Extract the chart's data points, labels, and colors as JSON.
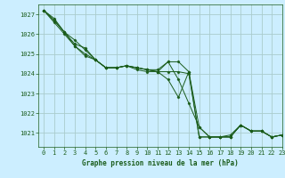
{
  "title": "Graphe pression niveau de la mer (hPa)",
  "background_color": "#cceeff",
  "grid_color": "#aacccc",
  "line_color": "#1a5c1a",
  "marker_color": "#1a5c1a",
  "xlim": [
    -0.5,
    23
  ],
  "ylim": [
    1020.3,
    1027.5
  ],
  "yticks": [
    1021,
    1022,
    1023,
    1024,
    1025,
    1026,
    1027
  ],
  "xticks": [
    0,
    1,
    2,
    3,
    4,
    5,
    6,
    7,
    8,
    9,
    10,
    11,
    12,
    13,
    14,
    15,
    16,
    17,
    18,
    19,
    20,
    21,
    22,
    23
  ],
  "series": [
    [
      1027.2,
      1026.8,
      1026.1,
      1025.7,
      1025.2,
      1024.7,
      1024.3,
      1024.3,
      1024.4,
      1024.2,
      1024.1,
      1024.1,
      1024.6,
      1024.6,
      1024.1,
      1020.8,
      1020.8,
      1020.8,
      1020.8,
      1021.4,
      1021.1,
      1021.1,
      1020.8,
      1020.9
    ],
    [
      1027.2,
      1026.7,
      1026.1,
      1025.5,
      1025.3,
      1024.7,
      1024.3,
      1024.3,
      1024.4,
      1024.3,
      1024.2,
      1024.2,
      1024.6,
      1023.7,
      1022.5,
      1021.3,
      1020.8,
      1020.8,
      1020.9,
      1021.4,
      1021.1,
      1021.1,
      1020.8,
      1020.9
    ],
    [
      1027.2,
      1026.7,
      1026.1,
      1025.4,
      1025.0,
      1024.7,
      1024.3,
      1024.3,
      1024.4,
      1024.3,
      1024.2,
      1024.1,
      1023.7,
      1022.8,
      1024.1,
      1021.3,
      1020.8,
      1020.8,
      1020.8,
      1021.4,
      1021.1,
      1021.1,
      1020.8,
      1020.9
    ],
    [
      1027.2,
      1026.6,
      1026.0,
      1025.4,
      1024.9,
      1024.7,
      1024.3,
      1024.3,
      1024.4,
      1024.3,
      1024.2,
      1024.1,
      1024.1,
      1024.1,
      1024.0,
      1020.8,
      1020.8,
      1020.8,
      1020.8,
      1021.4,
      1021.1,
      1021.1,
      1020.8,
      1020.9
    ]
  ]
}
